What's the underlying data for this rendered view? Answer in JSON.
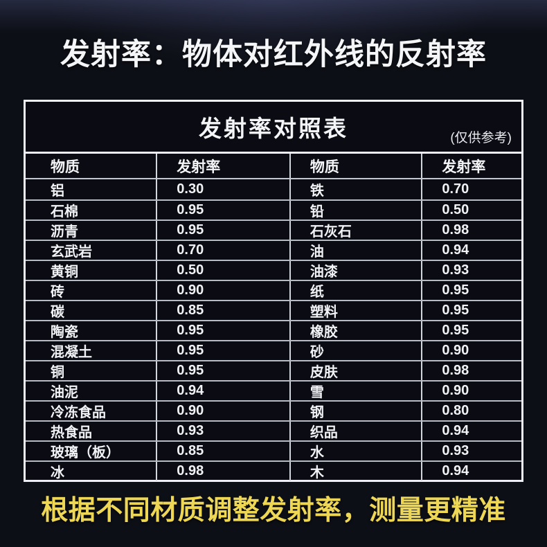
{
  "page": {
    "title": "发射率：物体对红外线的反射率",
    "footer": "根据不同材质调整发射率，测量更精准"
  },
  "table": {
    "title": "发射率对照表",
    "note": "(仅供参考)",
    "headers": [
      "物质",
      "发射率",
      "物质",
      "发射率"
    ],
    "rows": [
      [
        "铝",
        "0.30",
        "铁",
        "0.70"
      ],
      [
        "石棉",
        "0.95",
        "铅",
        "0.50"
      ],
      [
        "沥青",
        "0.95",
        "石灰石",
        "0.98"
      ],
      [
        "玄武岩",
        "0.70",
        "油",
        "0.94"
      ],
      [
        "黄铜",
        "0.50",
        "油漆",
        "0.93"
      ],
      [
        "砖",
        "0.90",
        "纸",
        "0.95"
      ],
      [
        "碳",
        "0.85",
        "塑料",
        "0.95"
      ],
      [
        "陶瓷",
        "0.95",
        "橡胶",
        "0.95"
      ],
      [
        "混凝土",
        "0.95",
        "砂",
        "0.90"
      ],
      [
        "铜",
        "0.95",
        "皮肤",
        "0.98"
      ],
      [
        "油泥",
        "0.94",
        "雪",
        "0.90"
      ],
      [
        "冷冻食品",
        "0.90",
        "钢",
        "0.80"
      ],
      [
        "热食品",
        "0.93",
        "织品",
        "0.94"
      ],
      [
        "玻璃（板）",
        "0.85",
        "水",
        "0.93"
      ],
      [
        "冰",
        "0.98",
        "木",
        "0.94"
      ]
    ]
  },
  "chart_data": {
    "type": "table",
    "title": "发射率对照表",
    "subtitle": "(仅供参考)",
    "columns": [
      "物质",
      "发射率",
      "物质",
      "发射率"
    ],
    "rows": [
      [
        "铝",
        "0.30",
        "铁",
        "0.70"
      ],
      [
        "石棉",
        "0.95",
        "铅",
        "0.50"
      ],
      [
        "沥青",
        "0.95",
        "石灰石",
        "0.98"
      ],
      [
        "玄武岩",
        "0.70",
        "油",
        "0.94"
      ],
      [
        "黄铜",
        "0.50",
        "油漆",
        "0.93"
      ],
      [
        "砖",
        "0.90",
        "纸",
        "0.95"
      ],
      [
        "碳",
        "0.85",
        "塑料",
        "0.95"
      ],
      [
        "陶瓷",
        "0.95",
        "橡胶",
        "0.95"
      ],
      [
        "混凝土",
        "0.95",
        "砂",
        "0.90"
      ],
      [
        "铜",
        "0.95",
        "皮肤",
        "0.98"
      ],
      [
        "油泥",
        "0.94",
        "雪",
        "0.90"
      ],
      [
        "冷冻食品",
        "0.90",
        "钢",
        "0.80"
      ],
      [
        "热食品",
        "0.93",
        "织品",
        "0.94"
      ],
      [
        "玻璃（板）",
        "0.85",
        "水",
        "0.93"
      ],
      [
        "冰",
        "0.98",
        "木",
        "0.94"
      ]
    ]
  },
  "colors": {
    "background": "#0D0F16",
    "top_glow": "#262A40",
    "table_border": "#EDEFF4",
    "row_divider": "#B7BBC4",
    "column_divider": "#D3D6DD",
    "text": "#F4F5F7",
    "accent_yellow": "#EDD755"
  }
}
